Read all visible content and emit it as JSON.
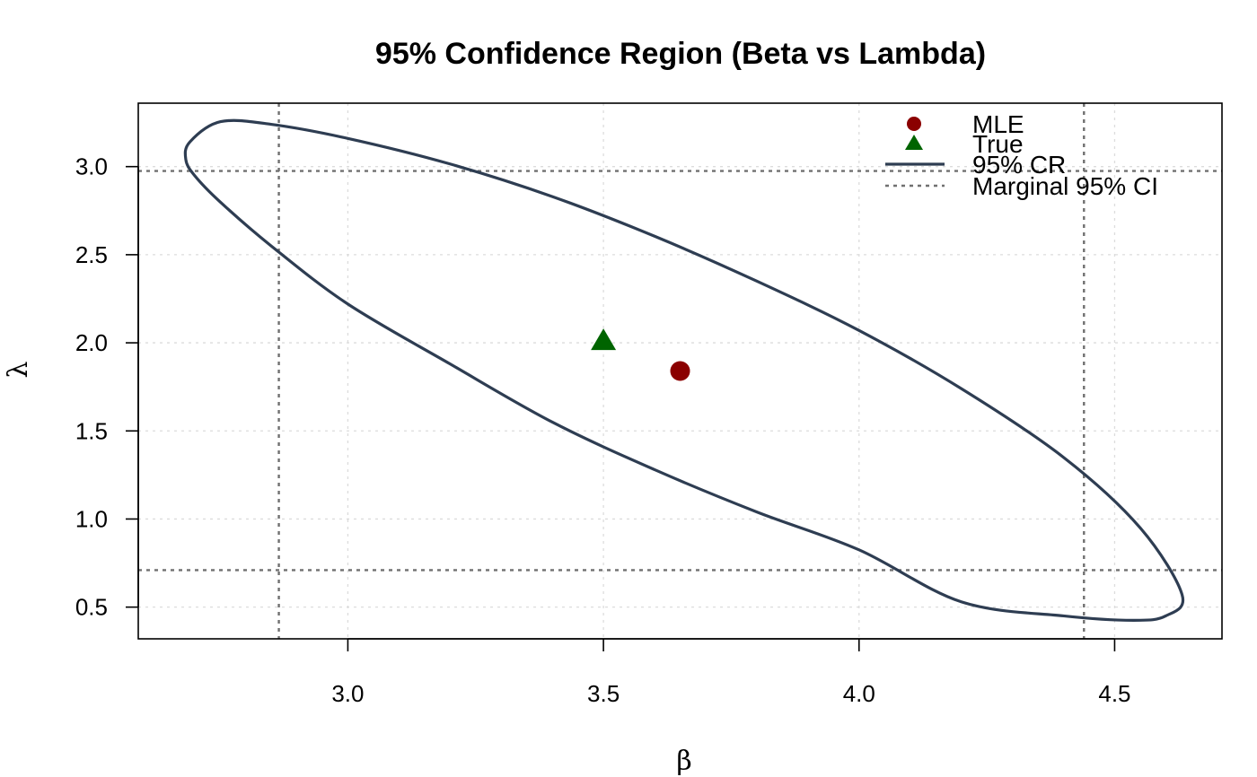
{
  "chart_data": {
    "type": "scatter",
    "title": "95% Confidence Region (Beta vs Lambda)",
    "xlabel": "β",
    "ylabel": "λ",
    "xlim": [
      2.59,
      4.71
    ],
    "ylim": [
      0.32,
      3.36
    ],
    "x_ticks": [
      3.0,
      3.5,
      4.0,
      4.5
    ],
    "x_tick_labels": [
      "3.0",
      "3.5",
      "4.0",
      "4.5"
    ],
    "y_ticks": [
      0.5,
      1.0,
      1.5,
      2.0,
      2.5,
      3.0
    ],
    "y_tick_labels": [
      "0.5",
      "1.0",
      "1.5",
      "2.0",
      "2.5",
      "3.0"
    ],
    "grid": true,
    "legend_position": "top-right",
    "mle": {
      "beta": 3.65,
      "lambda": 1.84
    },
    "true": {
      "beta": 3.5,
      "lambda": 2.01
    },
    "marginal_ci": {
      "beta": [
        2.865,
        4.44
      ],
      "lambda": [
        0.71,
        2.975
      ]
    },
    "confidence_region": [
      [
        2.683,
        3.04
      ],
      [
        2.691,
        3.14
      ],
      [
        2.751,
        3.255
      ],
      [
        2.85,
        3.24
      ],
      [
        3.0,
        3.16
      ],
      [
        3.2,
        3.015
      ],
      [
        3.4,
        2.83
      ],
      [
        3.6,
        2.605
      ],
      [
        3.8,
        2.35
      ],
      [
        4.0,
        2.07
      ],
      [
        4.2,
        1.74
      ],
      [
        4.4,
        1.35
      ],
      [
        4.55,
        0.95
      ],
      [
        4.632,
        0.57
      ],
      [
        4.6,
        0.45
      ],
      [
        4.537,
        0.425
      ],
      [
        4.4,
        0.45
      ],
      [
        4.2,
        0.53
      ],
      [
        4.0,
        0.825
      ],
      [
        3.8,
        1.04
      ],
      [
        3.6,
        1.28
      ],
      [
        3.4,
        1.55
      ],
      [
        3.2,
        1.88
      ],
      [
        3.0,
        2.22
      ],
      [
        2.85,
        2.55
      ],
      [
        2.75,
        2.8
      ],
      [
        2.7,
        2.95
      ]
    ],
    "legend": [
      {
        "label": "MLE",
        "symbol": "circle",
        "color": "#8b0000"
      },
      {
        "label": "True",
        "symbol": "triangle",
        "color": "#006400"
      },
      {
        "label": "95% CR",
        "symbol": "line",
        "color": "#2e3d52"
      },
      {
        "label": "Marginal 95% CI",
        "symbol": "dashed-line",
        "color": "#707070"
      }
    ],
    "colors": {
      "region": "#2e3d52",
      "ci": "#707070",
      "grid": "#dcdcdc",
      "mle": "#8b0000",
      "true": "#006400"
    }
  }
}
